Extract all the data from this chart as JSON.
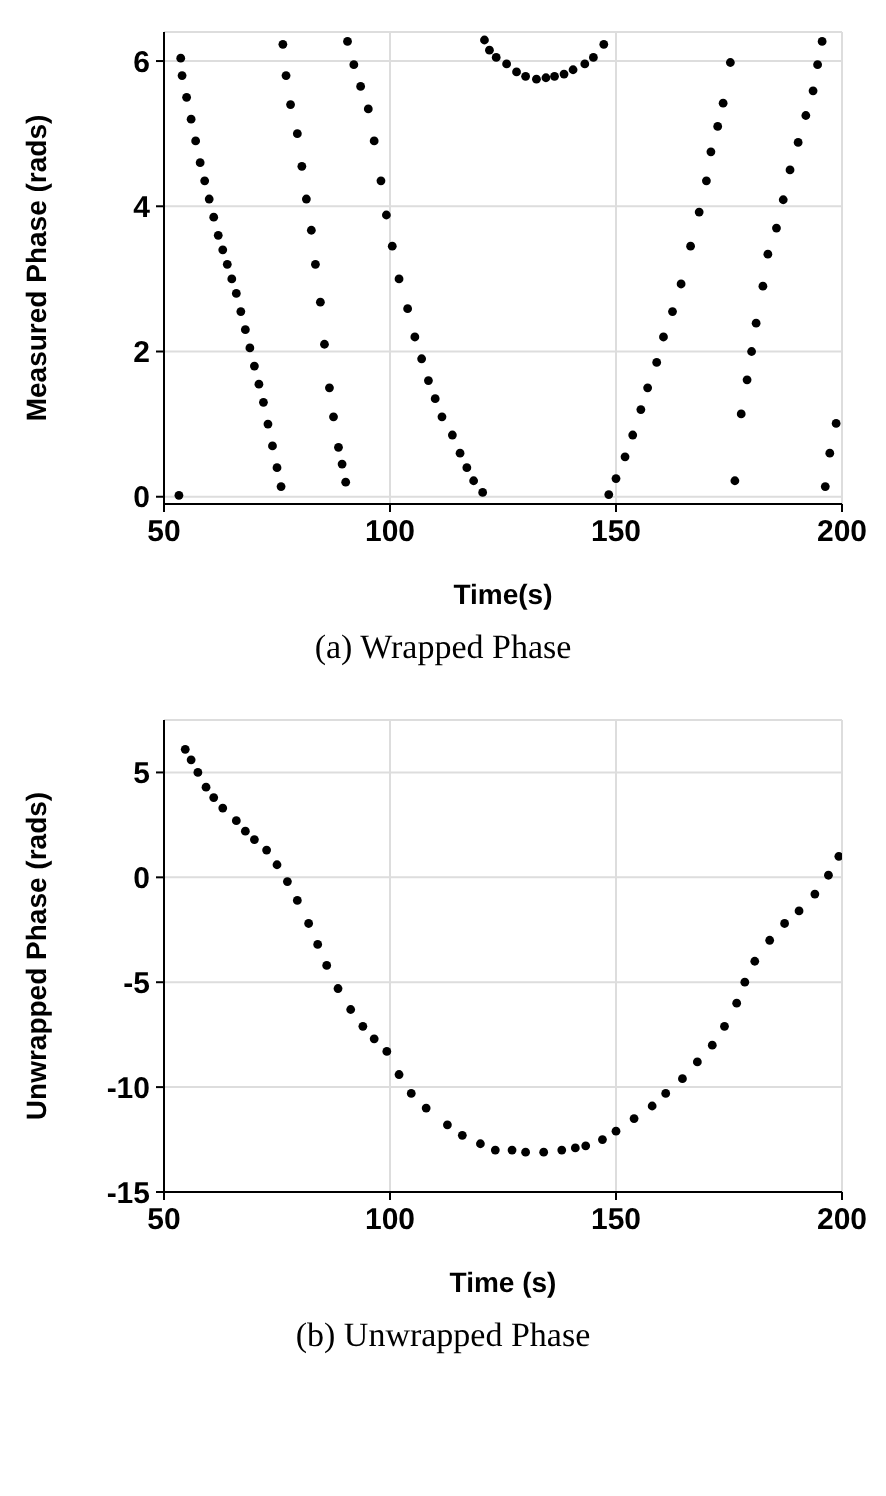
{
  "chart_data": [
    {
      "type": "scatter",
      "xlabel": "Time(s)",
      "ylabel": "Measured Phase (rads)",
      "xlim": [
        50,
        200
      ],
      "xticks": [
        50,
        100,
        150,
        200
      ],
      "ylim": [
        -0.1,
        6.4
      ],
      "yticks": [
        0,
        2,
        4,
        6
      ],
      "grid": true,
      "marker": "circle",
      "color": "#000000",
      "x": [
        53.3,
        53.7,
        54,
        55,
        56,
        57,
        58,
        59,
        60,
        61,
        62,
        63,
        64,
        65,
        66,
        67,
        68,
        69,
        70,
        71,
        72,
        73,
        74,
        75,
        75.9,
        76.3,
        77,
        78,
        79.5,
        80.5,
        81.5,
        82.6,
        83.5,
        84.6,
        85.5,
        86.6,
        87.5,
        88.6,
        89.4,
        90.2,
        90.6,
        92,
        93.5,
        95.2,
        96.5,
        98,
        99.2,
        100.5,
        102,
        103.9,
        105.5,
        107,
        108.5,
        110,
        111.5,
        113.8,
        115.5,
        117,
        118.5,
        120.5,
        120.9,
        122,
        123.5,
        125.8,
        128,
        130,
        132.4,
        134.5,
        136.4,
        138.5,
        140.5,
        143.1,
        145,
        147.3,
        148.4,
        150,
        152,
        153.7,
        155.5,
        157,
        159,
        160.5,
        162.5,
        164.4,
        166.5,
        168.4,
        170,
        171,
        172.5,
        173.7,
        175.3,
        176.3,
        177.7,
        179,
        180,
        181,
        182.5,
        183.6,
        185.5,
        187,
        188.5,
        190.3,
        192,
        193.6,
        194.6,
        195.6,
        196.3,
        197.3,
        198.7
      ],
      "values": [
        0.02,
        6.04,
        5.8,
        5.5,
        5.2,
        4.9,
        4.6,
        4.35,
        4.1,
        3.85,
        3.6,
        3.4,
        3.2,
        3.0,
        2.8,
        2.55,
        2.3,
        2.05,
        1.8,
        1.55,
        1.3,
        1.0,
        0.7,
        0.4,
        0.14,
        6.23,
        5.8,
        5.4,
        5.0,
        4.55,
        4.1,
        3.67,
        3.2,
        2.68,
        2.1,
        1.5,
        1.1,
        0.68,
        0.45,
        0.2,
        6.27,
        5.95,
        5.65,
        5.34,
        4.9,
        4.35,
        3.88,
        3.45,
        3.0,
        2.59,
        2.2,
        1.9,
        1.6,
        1.35,
        1.1,
        0.85,
        0.6,
        0.4,
        0.22,
        0.06,
        6.29,
        6.15,
        6.05,
        5.96,
        5.85,
        5.79,
        5.75,
        5.77,
        5.79,
        5.82,
        5.88,
        5.96,
        6.05,
        6.23,
        0.03,
        0.25,
        0.55,
        0.85,
        1.2,
        1.5,
        1.85,
        2.2,
        2.55,
        2.93,
        3.45,
        3.92,
        4.35,
        4.75,
        5.1,
        5.42,
        5.98,
        0.22,
        1.14,
        1.61,
        2.0,
        2.39,
        2.9,
        3.34,
        3.7,
        4.09,
        4.5,
        4.88,
        5.25,
        5.59,
        5.95,
        6.27,
        0.14,
        0.6,
        1.01
      ],
      "annotations": [
        "(a) Wrapped Phase"
      ]
    },
    {
      "type": "scatter",
      "xlabel": "Time (s)",
      "ylabel": "Unwrapped Phase (rads)",
      "xlim": [
        50,
        200
      ],
      "xticks": [
        50,
        100,
        150,
        200
      ],
      "ylim": [
        -15,
        7.5
      ],
      "yticks": [
        -15,
        -10,
        -5,
        0,
        5
      ],
      "grid": true,
      "marker": "circle",
      "color": "#000000",
      "x": [
        54.7,
        56,
        57.5,
        59.3,
        61,
        63,
        66,
        68,
        70,
        72.7,
        75,
        77.3,
        79.5,
        82,
        84,
        86,
        88.5,
        91.3,
        94,
        96.5,
        99.3,
        102,
        104.7,
        108,
        112.7,
        116,
        120,
        123.3,
        127,
        130,
        134,
        138,
        141,
        143.3,
        147,
        150,
        154,
        158,
        161,
        164.7,
        168,
        171.3,
        174,
        176.7,
        178.5,
        180.7,
        184,
        187.3,
        190.5,
        194,
        197,
        199.3
      ],
      "values": [
        6.1,
        5.6,
        5.0,
        4.3,
        3.8,
        3.3,
        2.7,
        2.2,
        1.8,
        1.3,
        0.6,
        -0.2,
        -1.1,
        -2.2,
        -3.2,
        -4.2,
        -5.3,
        -6.3,
        -7.1,
        -7.7,
        -8.3,
        -9.4,
        -10.3,
        -11.0,
        -11.8,
        -12.3,
        -12.7,
        -13.0,
        -13.0,
        -13.1,
        -13.1,
        -13.0,
        -12.9,
        -12.8,
        -12.5,
        -12.1,
        -11.5,
        -10.9,
        -10.3,
        -9.6,
        -8.8,
        -8.0,
        -7.1,
        -6.0,
        -5.0,
        -4.0,
        -3.0,
        -2.2,
        -1.6,
        -0.8,
        0.1,
        1.0
      ],
      "annotations": [
        "(b) Unwrapped Phase"
      ]
    }
  ]
}
